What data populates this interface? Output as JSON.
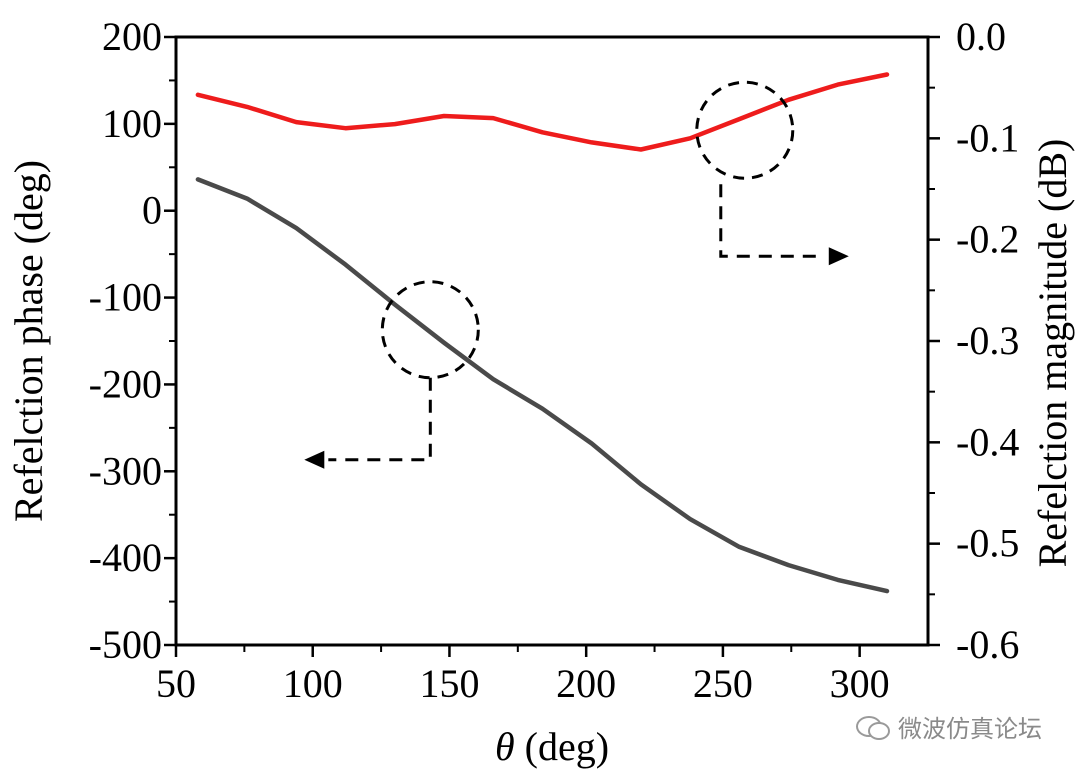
{
  "chart_data": {
    "type": "line",
    "xlabel_symbol": "θ",
    "xlabel_unit": " (deg)",
    "ylabel_left": "Refelction phase (deg)",
    "ylabel_right": "Refelction magnitude (dB)",
    "xlim": [
      50,
      325
    ],
    "ylim_left": [
      -500,
      200
    ],
    "ylim_right": [
      -0.6,
      0.0
    ],
    "x_ticks": [
      50,
      100,
      150,
      200,
      250,
      300
    ],
    "x_tick_labels": [
      "50",
      "100",
      "150",
      "200",
      "250",
      "300"
    ],
    "y_left_ticks": [
      200,
      100,
      0,
      -100,
      -200,
      -300,
      -400,
      -500
    ],
    "y_left_tick_labels": [
      "200",
      "100",
      "0",
      "-100",
      "-200",
      "-300",
      "-400",
      "-500"
    ],
    "y_right_ticks": [
      0.0,
      -0.1,
      -0.2,
      -0.3,
      -0.4,
      -0.5,
      -0.6
    ],
    "y_right_tick_labels": [
      "0.0",
      "-0.1",
      "-0.2",
      "-0.3",
      "-0.4",
      "-0.5",
      "-0.6"
    ],
    "series": [
      {
        "name": "Reflection phase",
        "axis": "left",
        "color": "#4a4a4a",
        "x": [
          58,
          76,
          94,
          112,
          130,
          148,
          166,
          184,
          202,
          220,
          238,
          256,
          274,
          292,
          310
        ],
        "values": [
          36,
          14,
          -20,
          -62,
          -108,
          -152,
          -194,
          -228,
          -268,
          -315,
          -355,
          -387,
          -408,
          -425,
          -438
        ]
      },
      {
        "name": "Reflection magnitude",
        "axis": "right",
        "color": "#ee1c1c",
        "x": [
          58,
          76,
          94,
          112,
          130,
          148,
          166,
          184,
          202,
          220,
          238,
          256,
          274,
          292,
          310
        ],
        "values": [
          -0.057,
          -0.069,
          -0.084,
          -0.09,
          -0.086,
          -0.078,
          -0.08,
          -0.094,
          -0.104,
          -0.111,
          -0.1,
          -0.081,
          -0.062,
          -0.047,
          -0.037
        ]
      }
    ],
    "annotations": [
      {
        "circle_center": [
          143,
          -137
        ],
        "circle_axis": "left",
        "arrow_to": "left"
      },
      {
        "circle_center": [
          258,
          -0.092
        ],
        "circle_axis": "right",
        "arrow_to": "right"
      }
    ]
  },
  "watermark": {
    "text": "微波仿真论坛",
    "icon": "wechat-icon"
  }
}
